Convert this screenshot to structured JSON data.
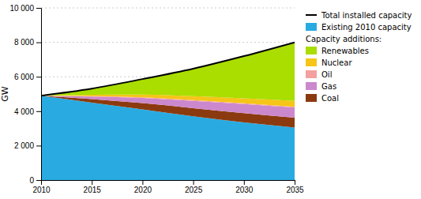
{
  "chart_data": {
    "type": "area",
    "stacked": true,
    "x": [
      2010,
      2015,
      2020,
      2025,
      2030,
      2035
    ],
    "series": [
      {
        "name": "Existing 2010 capacity",
        "color": "#29ABE2",
        "values": [
          4900,
          4500,
          4100,
          3700,
          3350,
          3050
        ]
      },
      {
        "name": "Coal",
        "color": "#8B3A0F",
        "values": [
          0,
          200,
          370,
          480,
          540,
          570
        ]
      },
      {
        "name": "Gas",
        "color": "#CC88CC",
        "values": [
          0,
          150,
          300,
          420,
          530,
          600
        ]
      },
      {
        "name": "Oil",
        "color": "#F4A0A0",
        "values": [
          0,
          20,
          35,
          40,
          40,
          40
        ]
      },
      {
        "name": "Nuclear",
        "color": "#F5C518",
        "values": [
          0,
          80,
          160,
          230,
          290,
          340
        ]
      },
      {
        "name": "Renewables",
        "color": "#AADD00",
        "values": [
          0,
          360,
          900,
          1600,
          2450,
          3400
        ]
      },
      {
        "name": "Total installed capacity",
        "type": "line",
        "color": "#000000",
        "values": [
          4900,
          5310,
          5865,
          6470,
          7200,
          8000
        ]
      }
    ],
    "annotations": [
      "Capacity additions:"
    ],
    "y_label": "GW",
    "xlim": [
      2010,
      2035
    ],
    "xticks": [
      2010,
      2015,
      2020,
      2025,
      2030,
      2035
    ],
    "ylim": [
      0,
      10000
    ],
    "yticks": [
      0,
      {
        "value": 2000,
        "label": "2 000"
      },
      {
        "value": 4000,
        "label": "4 000"
      },
      {
        "value": 6000,
        "label": "6 000"
      },
      {
        "value": 8000,
        "label": "8 000"
      },
      {
        "value": 10000,
        "label": "10 000"
      }
    ],
    "grid": true,
    "legend": "right"
  }
}
